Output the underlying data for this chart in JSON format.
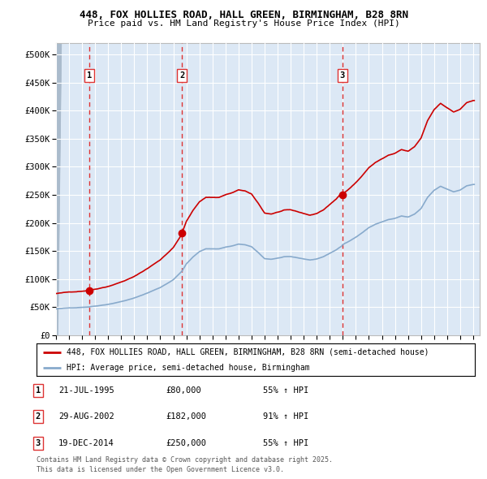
{
  "title_line1": "448, FOX HOLLIES ROAD, HALL GREEN, BIRMINGHAM, B28 8RN",
  "title_line2": "Price paid vs. HM Land Registry's House Price Index (HPI)",
  "ylim": [
    0,
    520000
  ],
  "yticks": [
    0,
    50000,
    100000,
    150000,
    200000,
    250000,
    300000,
    350000,
    400000,
    450000,
    500000
  ],
  "ytick_labels": [
    "£0",
    "£50K",
    "£100K",
    "£150K",
    "£200K",
    "£250K",
    "£300K",
    "£350K",
    "£400K",
    "£450K",
    "£500K"
  ],
  "xlim_year": [
    1993,
    2025.5
  ],
  "purchases": [
    {
      "label": "1",
      "date_year": 1995.55,
      "price": 80000
    },
    {
      "label": "2",
      "date_year": 2002.66,
      "price": 182000
    },
    {
      "label": "3",
      "date_year": 2014.97,
      "price": 250000
    }
  ],
  "purchase_color": "#cc0000",
  "hpi_color": "#88aacc",
  "legend_line1": "448, FOX HOLLIES ROAD, HALL GREEN, BIRMINGHAM, B28 8RN (semi-detached house)",
  "legend_line2": "HPI: Average price, semi-detached house, Birmingham",
  "table_rows": [
    {
      "num": "1",
      "date": "21-JUL-1995",
      "price": "£80,000",
      "hpi": "55% ↑ HPI"
    },
    {
      "num": "2",
      "date": "29-AUG-2002",
      "price": "£182,000",
      "hpi": "91% ↑ HPI"
    },
    {
      "num": "3",
      "date": "19-DEC-2014",
      "price": "£250,000",
      "hpi": "55% ↑ HPI"
    }
  ],
  "footnote": "Contains HM Land Registry data © Crown copyright and database right 2025.\nThis data is licensed under the Open Government Licence v3.0.",
  "background_color": "#dce8f5",
  "grid_color": "#ffffff",
  "purchase_vline_color": "#dd3333"
}
